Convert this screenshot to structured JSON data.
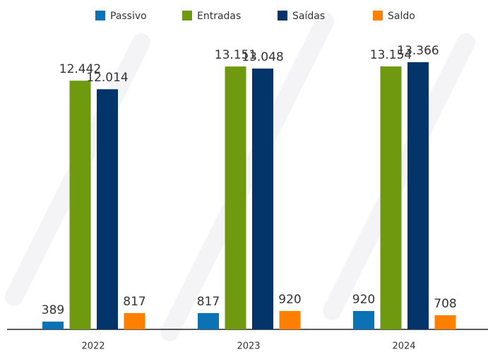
{
  "chart_data": {
    "type": "bar",
    "categories": [
      "2022",
      "2023",
      "2024"
    ],
    "series": [
      {
        "name": "Passivo",
        "color": "#0a72b5",
        "values": [
          389,
          817,
          920
        ],
        "value_labels": [
          "389",
          "817",
          "920"
        ]
      },
      {
        "name": "Entradas",
        "color": "#6f9a10",
        "values": [
          12442,
          13151,
          13154
        ],
        "value_labels": [
          "12.442",
          "13.151",
          "13.154"
        ]
      },
      {
        "name": "Saídas",
        "color": "#03346a",
        "values": [
          12014,
          13048,
          13366
        ],
        "value_labels": [
          "12.014",
          "13.048",
          "13.366"
        ]
      },
      {
        "name": "Saldo",
        "color": "#ff8000",
        "values": [
          817,
          920,
          708
        ],
        "value_labels": [
          "817",
          "920",
          "708"
        ]
      }
    ]
  }
}
